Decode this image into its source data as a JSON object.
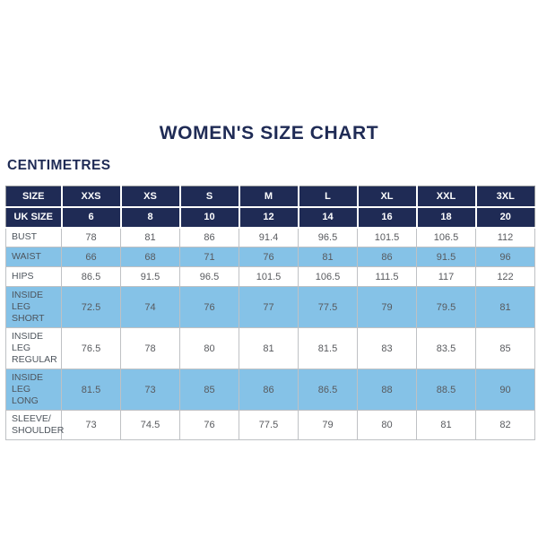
{
  "page": {
    "title": "WOMEN'S SIZE CHART",
    "unit_label": "CENTIMETRES"
  },
  "colors": {
    "navy": "#1f2b55",
    "light_blue": "#85c2e7",
    "data_text": "#585a5e",
    "label_text": "#4d545c",
    "border_outer": "#8f9296",
    "border_inner": "#bfc1c4"
  },
  "chart_data": {
    "type": "table",
    "title": "WOMEN'S SIZE CHART",
    "unit": "CENTIMETRES",
    "header_rows": [
      {
        "label": "SIZE",
        "values": [
          "XXS",
          "XS",
          "S",
          "M",
          "L",
          "XL",
          "XXL",
          "3XL"
        ]
      },
      {
        "label": "UK SIZE",
        "values": [
          "6",
          "8",
          "10",
          "12",
          "14",
          "16",
          "18",
          "20"
        ]
      }
    ],
    "rows": [
      {
        "label": "BUST",
        "highlighted": false,
        "values": [
          "78",
          "81",
          "86",
          "91.4",
          "96.5",
          "101.5",
          "106.5",
          "112"
        ]
      },
      {
        "label": "WAIST",
        "highlighted": true,
        "values": [
          "66",
          "68",
          "71",
          "76",
          "81",
          "86",
          "91.5",
          "96"
        ]
      },
      {
        "label": "HIPS",
        "highlighted": false,
        "values": [
          "86.5",
          "91.5",
          "96.5",
          "101.5",
          "106.5",
          "111.5",
          "117",
          "122"
        ]
      },
      {
        "label": "INSIDE LEG\nSHORT",
        "highlighted": true,
        "values": [
          "72.5",
          "74",
          "76",
          "77",
          "77.5",
          "79",
          "79.5",
          "81"
        ]
      },
      {
        "label": "INSIDE LEG\nREGULAR",
        "highlighted": false,
        "values": [
          "76.5",
          "78",
          "80",
          "81",
          "81.5",
          "83",
          "83.5",
          "85"
        ]
      },
      {
        "label": "INSIDE LEG\nLONG",
        "highlighted": true,
        "values": [
          "81.5",
          "73",
          "85",
          "86",
          "86.5",
          "88",
          "88.5",
          "90"
        ]
      },
      {
        "label": "SLEEVE/\nSHOULDER",
        "highlighted": false,
        "values": [
          "73",
          "74.5",
          "76",
          "77.5",
          "79",
          "80",
          "81",
          "82"
        ]
      }
    ]
  }
}
